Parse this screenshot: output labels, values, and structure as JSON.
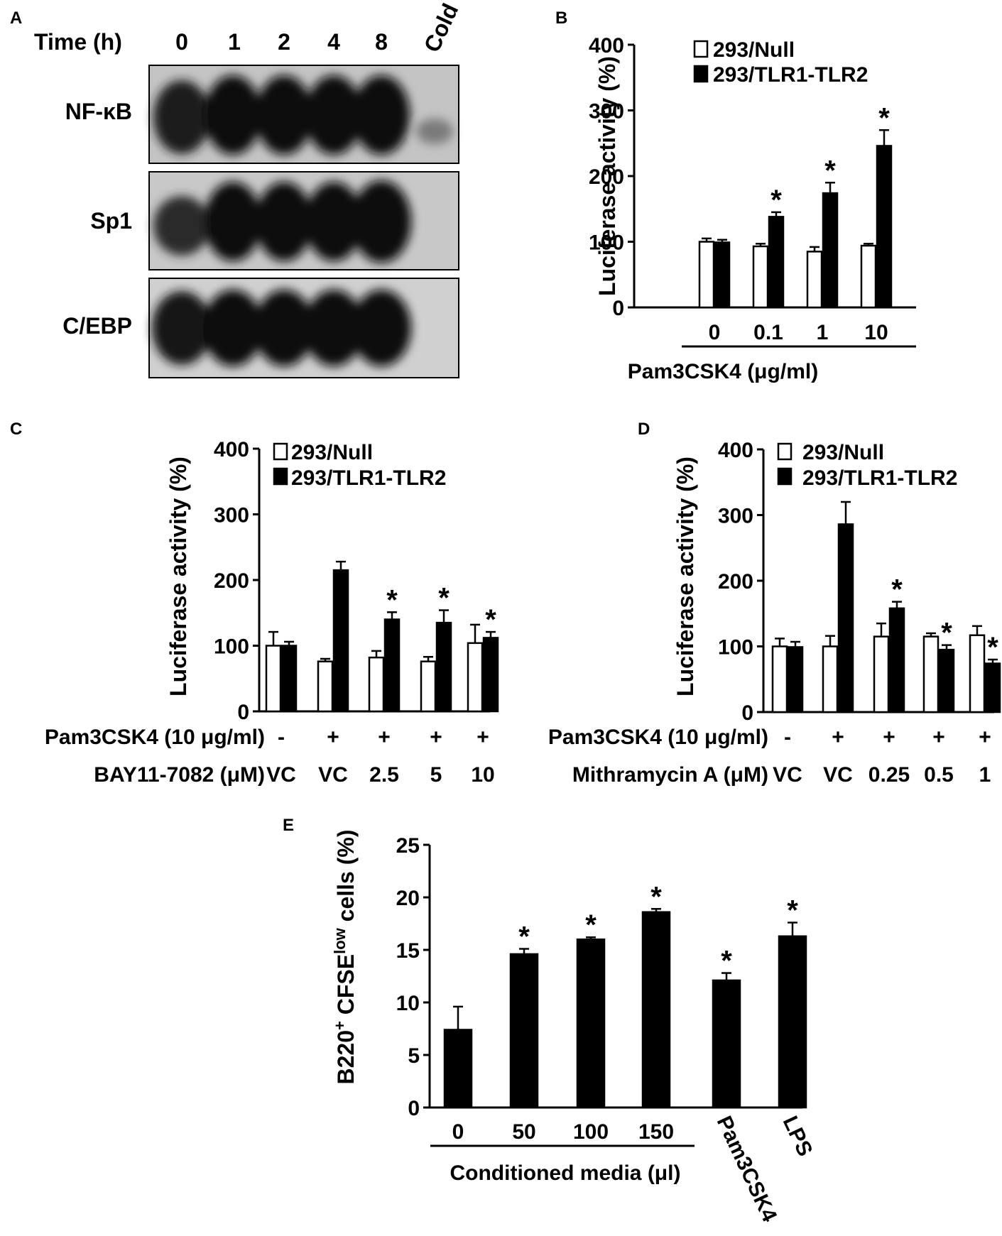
{
  "panel_a": {
    "label": "A",
    "time_label": "Time (h)",
    "lanes": [
      "0",
      "1",
      "2",
      "4",
      "8",
      "Cold"
    ],
    "blots": [
      "NF-κB",
      "Sp1",
      "C/EBP"
    ]
  },
  "chart_data": [
    {
      "id": "B",
      "type": "bar",
      "panel_label": "B",
      "ylabel": "Luciferase activity (%)",
      "xlabel": "Pam3CSK4 (μg/ml)",
      "ylim": [
        0,
        400
      ],
      "yticks": [
        0,
        100,
        200,
        300,
        400
      ],
      "categories": [
        "0",
        "0.1",
        "1",
        "10"
      ],
      "series": [
        {
          "name": "293/Null",
          "fill": "#ffffff",
          "values": [
            100,
            93,
            85,
            94
          ],
          "errors": [
            5,
            4,
            7,
            3
          ]
        },
        {
          "name": "293/TLR1-TLR2",
          "fill": "#000000",
          "values": [
            99,
            138,
            174,
            246
          ],
          "errors": [
            4,
            7,
            16,
            24
          ]
        }
      ],
      "significant": [
        false,
        true,
        true,
        true
      ]
    },
    {
      "id": "C",
      "type": "bar",
      "panel_label": "C",
      "ylabel": "Luciferase activity (%)",
      "ylim": [
        0,
        400
      ],
      "yticks": [
        0,
        100,
        200,
        300,
        400
      ],
      "row1_label": "Pam3CSK4 (10 μg/ml)",
      "row1": [
        "-",
        "+",
        "+",
        "+",
        "+"
      ],
      "row2_label": "BAY11-7082 (μM)",
      "row2": [
        "VC",
        "VC",
        "2.5",
        "5",
        "10"
      ],
      "series": [
        {
          "name": "293/Null",
          "fill": "#ffffff",
          "values": [
            100,
            76,
            82,
            76,
            104
          ],
          "errors": [
            21,
            4,
            10,
            7,
            28
          ]
        },
        {
          "name": "293/TLR1-TLR2",
          "fill": "#000000",
          "values": [
            100,
            215,
            140,
            135,
            112
          ],
          "errors": [
            6,
            13,
            11,
            19,
            9
          ]
        }
      ],
      "significant": [
        false,
        false,
        true,
        true,
        true
      ]
    },
    {
      "id": "D",
      "type": "bar",
      "panel_label": "D",
      "ylabel": "Luciferase activity (%)",
      "ylim": [
        0,
        400
      ],
      "yticks": [
        0,
        100,
        200,
        300,
        400
      ],
      "row1_label": "Pam3CSK4 (10 μg/ml)",
      "row1": [
        "-",
        "+",
        "+",
        "+",
        "+"
      ],
      "row2_label": "Mithramycin A (μM)",
      "row2": [
        "VC",
        "VC",
        "0.25",
        "0.5",
        "1"
      ],
      "series": [
        {
          "name": "293/Null",
          "fill": "#ffffff",
          "values": [
            100,
            100,
            115,
            115,
            117
          ],
          "errors": [
            12,
            16,
            20,
            5,
            14
          ]
        },
        {
          "name": "293/TLR1-TLR2",
          "fill": "#000000",
          "values": [
            99,
            286,
            158,
            95,
            74
          ],
          "errors": [
            8,
            34,
            10,
            7,
            6
          ]
        }
      ],
      "significant": [
        false,
        false,
        true,
        true,
        true
      ]
    },
    {
      "id": "E",
      "type": "bar",
      "panel_label": "E",
      "ylabel_main": "B220",
      "ylabel_sup1": "+",
      "ylabel_mid": " CFSE",
      "ylabel_sup2": "low",
      "ylabel_end": " cells  (%)",
      "ylim": [
        0,
        25
      ],
      "yticks": [
        0,
        5,
        10,
        15,
        20,
        25
      ],
      "categories": [
        "0",
        "50",
        "100",
        "150",
        "Pam3CSK4",
        "LPS"
      ],
      "group_label": "Conditioned media (μl)",
      "series": [
        {
          "fill": "#000000",
          "values": [
            7.4,
            14.6,
            16.0,
            18.6,
            12.1,
            16.3
          ],
          "errors": [
            2.2,
            0.5,
            0.2,
            0.3,
            0.7,
            1.3
          ]
        }
      ],
      "significant": [
        false,
        true,
        true,
        true,
        true,
        true
      ]
    }
  ]
}
